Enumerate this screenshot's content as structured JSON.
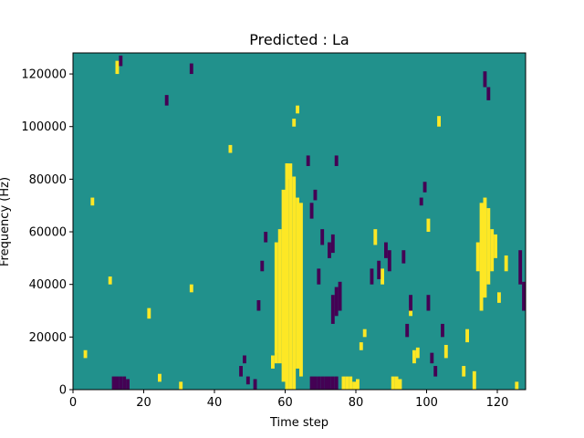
{
  "chart_data": {
    "type": "heatmap",
    "title": "Predicted : La",
    "xlabel": "Time step",
    "ylabel": "Frequency (Hz)",
    "xlim": [
      0,
      128
    ],
    "ylim": [
      0,
      128000
    ],
    "xticks": [
      0,
      20,
      40,
      60,
      80,
      100,
      120
    ],
    "yticks": [
      0,
      20000,
      40000,
      60000,
      80000,
      100000,
      120000
    ],
    "xtick_labels": [
      "0",
      "20",
      "40",
      "60",
      "80",
      "100",
      "120"
    ],
    "ytick_labels": [
      "0",
      "20000",
      "40000",
      "60000",
      "80000",
      "100000",
      "120000"
    ],
    "n_time_steps": 128,
    "n_freq_bins": 128,
    "colormap": "viridis",
    "values_range": [
      -1,
      1
    ],
    "colors": {
      "low": "#440154",
      "mid": "#21918c",
      "high": "#fde725"
    },
    "grid": false,
    "background_value": 0,
    "cells_high": [
      [
        60,
        0,
        85
      ],
      [
        61,
        0,
        85
      ],
      [
        62,
        0,
        80
      ],
      [
        63,
        8,
        72
      ],
      [
        64,
        5,
        70
      ],
      [
        59,
        3,
        75
      ],
      [
        58,
        10,
        60
      ],
      [
        57,
        14,
        55
      ],
      [
        76,
        0,
        4
      ],
      [
        77,
        0,
        4
      ],
      [
        78,
        0,
        4
      ],
      [
        79,
        0,
        2
      ],
      [
        80,
        0,
        3
      ],
      [
        90,
        0,
        4
      ],
      [
        91,
        0,
        4
      ],
      [
        92,
        0,
        3
      ],
      [
        56,
        8,
        12
      ],
      [
        57,
        10,
        14
      ],
      [
        115,
        30,
        70
      ],
      [
        116,
        35,
        72
      ],
      [
        117,
        40,
        68
      ],
      [
        118,
        45,
        60
      ],
      [
        119,
        50,
        58
      ],
      [
        114,
        45,
        55
      ],
      [
        3,
        12,
        14
      ],
      [
        10,
        40,
        42
      ],
      [
        24,
        3,
        5
      ],
      [
        30,
        0,
        2
      ],
      [
        60,
        80,
        85
      ],
      [
        62,
        100,
        102
      ],
      [
        63,
        105,
        107
      ],
      [
        81,
        15,
        17
      ],
      [
        82,
        20,
        22
      ],
      [
        95,
        28,
        30
      ],
      [
        96,
        10,
        14
      ],
      [
        97,
        12,
        15
      ],
      [
        110,
        5,
        8
      ],
      [
        111,
        18,
        22
      ],
      [
        120,
        33,
        36
      ],
      [
        122,
        45,
        50
      ],
      [
        5,
        70,
        72
      ],
      [
        12,
        120,
        124
      ],
      [
        21,
        27,
        30
      ],
      [
        33,
        37,
        39
      ],
      [
        44,
        90,
        92
      ],
      [
        85,
        55,
        60
      ],
      [
        87,
        40,
        45
      ],
      [
        100,
        60,
        64
      ],
      [
        103,
        100,
        103
      ],
      [
        105,
        12,
        16
      ],
      [
        113,
        0,
        6
      ],
      [
        125,
        0,
        2
      ]
    ],
    "cells_low": [
      [
        11,
        0,
        4
      ],
      [
        12,
        0,
        4
      ],
      [
        13,
        0,
        4
      ],
      [
        14,
        0,
        4
      ],
      [
        15,
        0,
        3
      ],
      [
        67,
        0,
        4
      ],
      [
        68,
        0,
        4
      ],
      [
        69,
        0,
        4
      ],
      [
        70,
        0,
        4
      ],
      [
        71,
        0,
        4
      ],
      [
        72,
        0,
        4
      ],
      [
        73,
        0,
        4
      ],
      [
        74,
        0,
        4
      ],
      [
        73,
        25,
        35
      ],
      [
        74,
        28,
        38
      ],
      [
        75,
        30,
        40
      ],
      [
        72,
        50,
        55
      ],
      [
        73,
        52,
        58
      ],
      [
        84,
        40,
        45
      ],
      [
        86,
        42,
        48
      ],
      [
        88,
        50,
        55
      ],
      [
        89,
        45,
        52
      ],
      [
        93,
        48,
        52
      ],
      [
        94,
        20,
        24
      ],
      [
        95,
        30,
        35
      ],
      [
        126,
        40,
        52
      ],
      [
        127,
        30,
        40
      ],
      [
        128,
        45,
        55
      ],
      [
        101,
        10,
        13
      ],
      [
        102,
        5,
        8
      ],
      [
        104,
        20,
        24
      ],
      [
        100,
        30,
        35
      ],
      [
        98,
        70,
        72
      ],
      [
        99,
        75,
        78
      ],
      [
        116,
        115,
        120
      ],
      [
        117,
        110,
        114
      ],
      [
        47,
        5,
        8
      ],
      [
        48,
        10,
        12
      ],
      [
        49,
        2,
        4
      ],
      [
        51,
        0,
        3
      ],
      [
        52,
        30,
        33
      ],
      [
        53,
        45,
        48
      ],
      [
        54,
        56,
        59
      ],
      [
        66,
        85,
        88
      ],
      [
        67,
        65,
        70
      ],
      [
        68,
        72,
        75
      ],
      [
        69,
        40,
        45
      ],
      [
        70,
        55,
        60
      ],
      [
        74,
        85,
        88
      ],
      [
        13,
        123,
        126
      ],
      [
        26,
        108,
        111
      ],
      [
        33,
        120,
        123
      ]
    ]
  }
}
